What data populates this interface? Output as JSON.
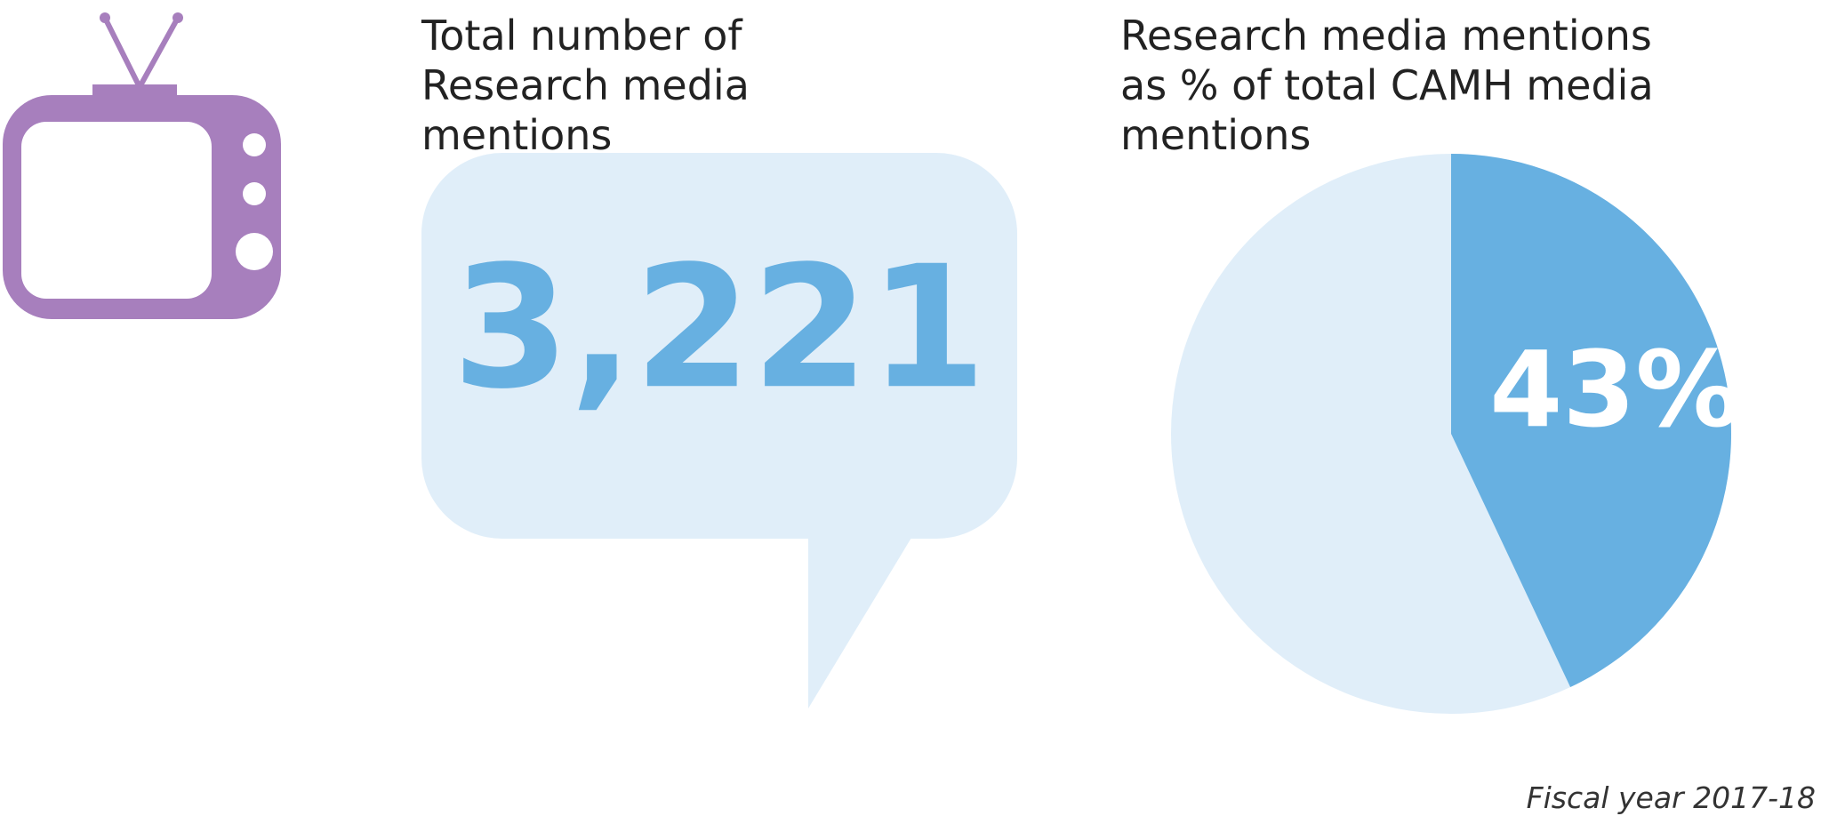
{
  "chart_data": [
    {
      "type": "stat",
      "title": "Total number of Research media mentions",
      "values": [
        3221
      ],
      "value_labels": [
        "3,221"
      ],
      "color": "#67b0e1"
    },
    {
      "type": "pie",
      "title": "Research media mentions as % of total CAMH media mentions",
      "values": [
        43
      ],
      "value_labels": [
        "43%"
      ],
      "color": "#67b0e1"
    }
  ],
  "footnote": "Fiscal year 2017-18"
}
